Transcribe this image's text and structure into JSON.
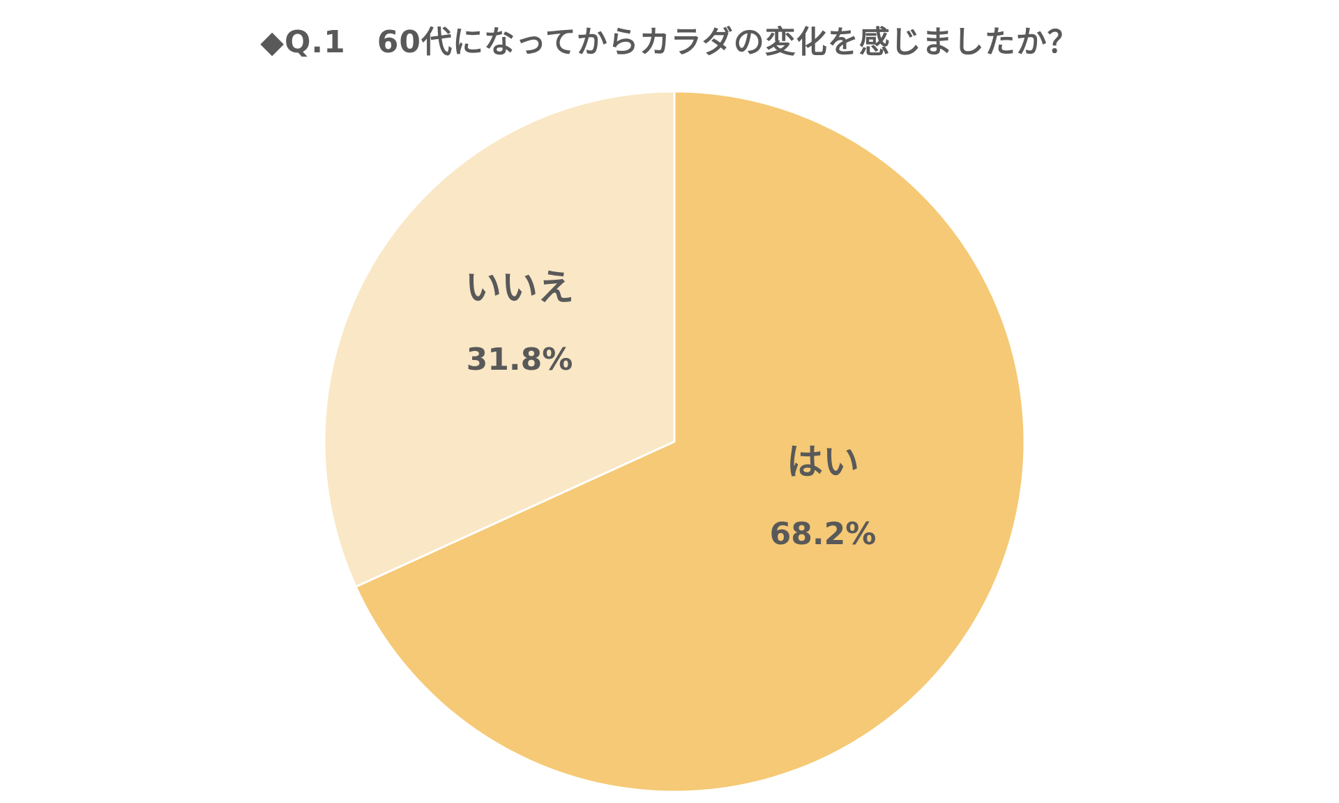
{
  "chart_data": {
    "type": "pie",
    "title": "◆Q.1　60代になってからカラダの変化を感じましたか？",
    "slices": [
      {
        "label": "はい",
        "value": 68.2,
        "value_label": "68.2%",
        "color": "#F5C975"
      },
      {
        "label": "いいえ",
        "value": 31.8,
        "value_label": "31.8%",
        "color": "#FAE7C5"
      }
    ],
    "start_angle": "12 o'clock",
    "direction": "clockwise",
    "legend": "none",
    "data_labels": "inside slices"
  }
}
